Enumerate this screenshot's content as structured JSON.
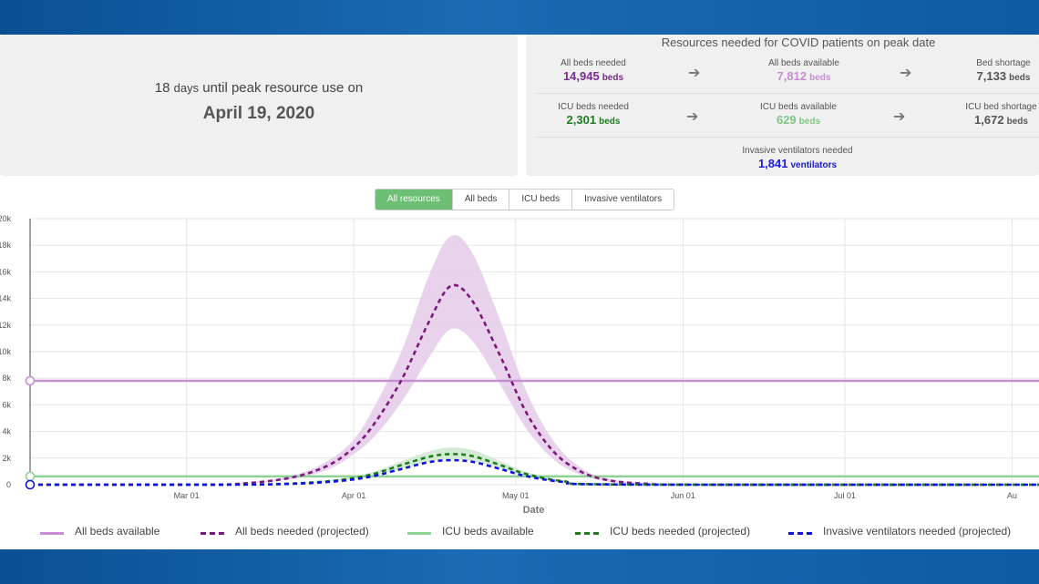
{
  "summary": {
    "countdown_number": "18",
    "countdown_days": "days",
    "countdown_text": "until peak resource use on",
    "peak_date": "April 19, 2020"
  },
  "resources": {
    "title": "Resources needed for COVID patients on peak date",
    "all_beds_needed": {
      "label": "All beds needed",
      "value": "14,945",
      "unit": "beds",
      "color": "#7b2a8e"
    },
    "all_beds_available": {
      "label": "All beds available",
      "value": "7,812",
      "unit": "beds",
      "color": "#c58fd0"
    },
    "bed_shortage": {
      "label": "Bed shortage",
      "value": "7,133",
      "unit": "beds",
      "color": "#555555"
    },
    "icu_beds_needed": {
      "label": "ICU beds needed",
      "value": "2,301",
      "unit": "beds",
      "color": "#1e7d1e"
    },
    "icu_beds_available": {
      "label": "ICU beds available",
      "value": "629",
      "unit": "beds",
      "color": "#7fc786"
    },
    "icu_bed_shortage": {
      "label": "ICU bed shortage",
      "value": "1,672",
      "unit": "beds",
      "color": "#555555"
    },
    "ventilators_needed": {
      "label": "Invasive ventilators needed",
      "value": "1,841",
      "unit": "ventilators",
      "color": "#1a1adb"
    },
    "arrow_icon": "arrow-right-icon"
  },
  "tabs": [
    {
      "label": "All resources",
      "active": true
    },
    {
      "label": "All beds",
      "active": false
    },
    {
      "label": "ICU beds",
      "active": false
    },
    {
      "label": "Invasive ventilators",
      "active": false
    }
  ],
  "legend": [
    {
      "label": "All beds available",
      "color": "#c78fd3",
      "style": "solid"
    },
    {
      "label": "All beds needed (projected)",
      "color": "#7b1a7b",
      "style": "dashed"
    },
    {
      "label": "ICU beds available",
      "color": "#8fd195",
      "style": "solid"
    },
    {
      "label": "ICU beds needed (projected)",
      "color": "#1a7d1a",
      "style": "dashed"
    },
    {
      "label": "Invasive ventilators needed (projected)",
      "color": "#1212e0",
      "style": "dashed"
    }
  ],
  "chart_data": {
    "type": "line",
    "xlabel": "Date",
    "ylabel": "",
    "ylim": [
      0,
      20000
    ],
    "y_ticks": [
      "0",
      "2k",
      "4k",
      "6k",
      "8k",
      "10k",
      "12k",
      "14k",
      "16k",
      "18k",
      "20k"
    ],
    "x_ticks": [
      "Mar 01",
      "Apr 01",
      "May 01",
      "Jun 01",
      "Jul 01",
      "Au"
    ],
    "x_range": [
      "2020-02-01",
      "2020-08-06"
    ],
    "grid": true,
    "series": [
      {
        "name": "All beds available",
        "style": "solid",
        "color": "#c78fd3",
        "x": [
          "2020-02-01",
          "2020-08-06"
        ],
        "y": [
          7812,
          7812
        ]
      },
      {
        "name": "ICU beds available",
        "style": "solid",
        "color": "#8fd195",
        "x": [
          "2020-02-01",
          "2020-08-06"
        ],
        "y": [
          629,
          629
        ]
      },
      {
        "name": "All beds needed (projected)",
        "style": "dashed",
        "color": "#7b1a7b",
        "x": [
          "2020-02-01",
          "2020-03-01",
          "2020-03-10",
          "2020-03-20",
          "2020-03-27",
          "2020-04-01",
          "2020-04-05",
          "2020-04-10",
          "2020-04-15",
          "2020-04-19",
          "2020-04-23",
          "2020-04-28",
          "2020-05-03",
          "2020-05-08",
          "2020-05-13",
          "2020-05-18",
          "2020-05-25",
          "2020-06-05",
          "2020-08-06"
        ],
        "y": [
          0,
          0,
          50,
          500,
          1400,
          2800,
          4700,
          8000,
          12300,
          14945,
          13800,
          9800,
          5400,
          2500,
          1000,
          350,
          80,
          0,
          0
        ],
        "lower": [
          0,
          0,
          40,
          400,
          1100,
          2300,
          3700,
          6300,
          9600,
          11700,
          10800,
          7600,
          4200,
          1900,
          750,
          250,
          50,
          0,
          0
        ],
        "upper": [
          0,
          0,
          60,
          600,
          1750,
          3400,
          6000,
          10200,
          15800,
          18700,
          17400,
          12500,
          7000,
          3300,
          1300,
          460,
          110,
          0,
          0
        ]
      },
      {
        "name": "ICU beds needed (projected)",
        "style": "dashed",
        "color": "#1a7d1a",
        "x": [
          "2020-02-01",
          "2020-03-10",
          "2020-03-20",
          "2020-03-27",
          "2020-04-01",
          "2020-04-05",
          "2020-04-10",
          "2020-04-15",
          "2020-04-19",
          "2020-04-23",
          "2020-04-28",
          "2020-05-03",
          "2020-05-10",
          "2020-05-20",
          "2020-08-06"
        ],
        "y": [
          0,
          10,
          80,
          250,
          500,
          850,
          1500,
          2100,
          2301,
          2150,
          1500,
          800,
          250,
          20,
          0
        ],
        "lower": [
          0,
          8,
          65,
          200,
          400,
          700,
          1200,
          1750,
          1900,
          1800,
          1250,
          650,
          200,
          15,
          0
        ],
        "upper": [
          0,
          12,
          95,
          300,
          600,
          1000,
          1800,
          2500,
          2800,
          2600,
          1800,
          950,
          300,
          25,
          0
        ]
      },
      {
        "name": "Invasive ventilators needed (projected)",
        "style": "dashed",
        "color": "#1212e0",
        "x": [
          "2020-02-01",
          "2020-03-10",
          "2020-03-20",
          "2020-03-27",
          "2020-04-01",
          "2020-04-05",
          "2020-04-10",
          "2020-04-15",
          "2020-04-19",
          "2020-04-23",
          "2020-04-28",
          "2020-05-03",
          "2020-05-10",
          "2020-05-20",
          "2020-08-06"
        ],
        "y": [
          0,
          8,
          60,
          200,
          400,
          680,
          1200,
          1700,
          1841,
          1720,
          1200,
          640,
          200,
          15,
          0
        ]
      }
    ]
  }
}
